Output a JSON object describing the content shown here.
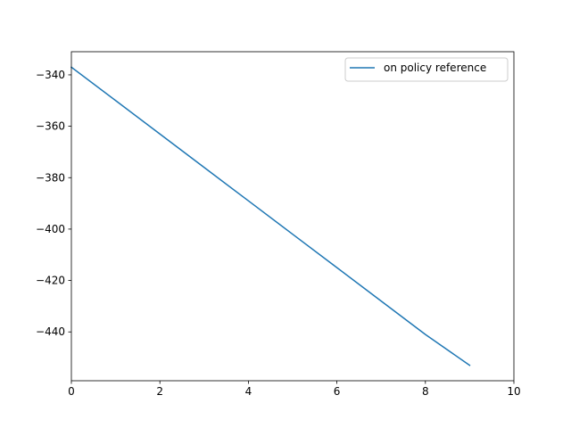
{
  "chart_data": {
    "type": "line",
    "title": "",
    "xlabel": "",
    "ylabel": "",
    "xlim": [
      0,
      10
    ],
    "ylim": [
      -459,
      -331
    ],
    "xticks": [
      0,
      2,
      4,
      6,
      8,
      10
    ],
    "yticks": [
      -340,
      -360,
      -380,
      -400,
      -420,
      -440
    ],
    "grid": false,
    "legend": {
      "position": "top-right"
    },
    "series": [
      {
        "name": "on policy reference",
        "color": "#1f77b4",
        "x": [
          0,
          1,
          2,
          3,
          4,
          5,
          6,
          7,
          8,
          9
        ],
        "y": [
          -337,
          -350,
          -363,
          -376,
          -389,
          -402,
          -415,
          -428,
          -441,
          -453
        ]
      }
    ]
  }
}
